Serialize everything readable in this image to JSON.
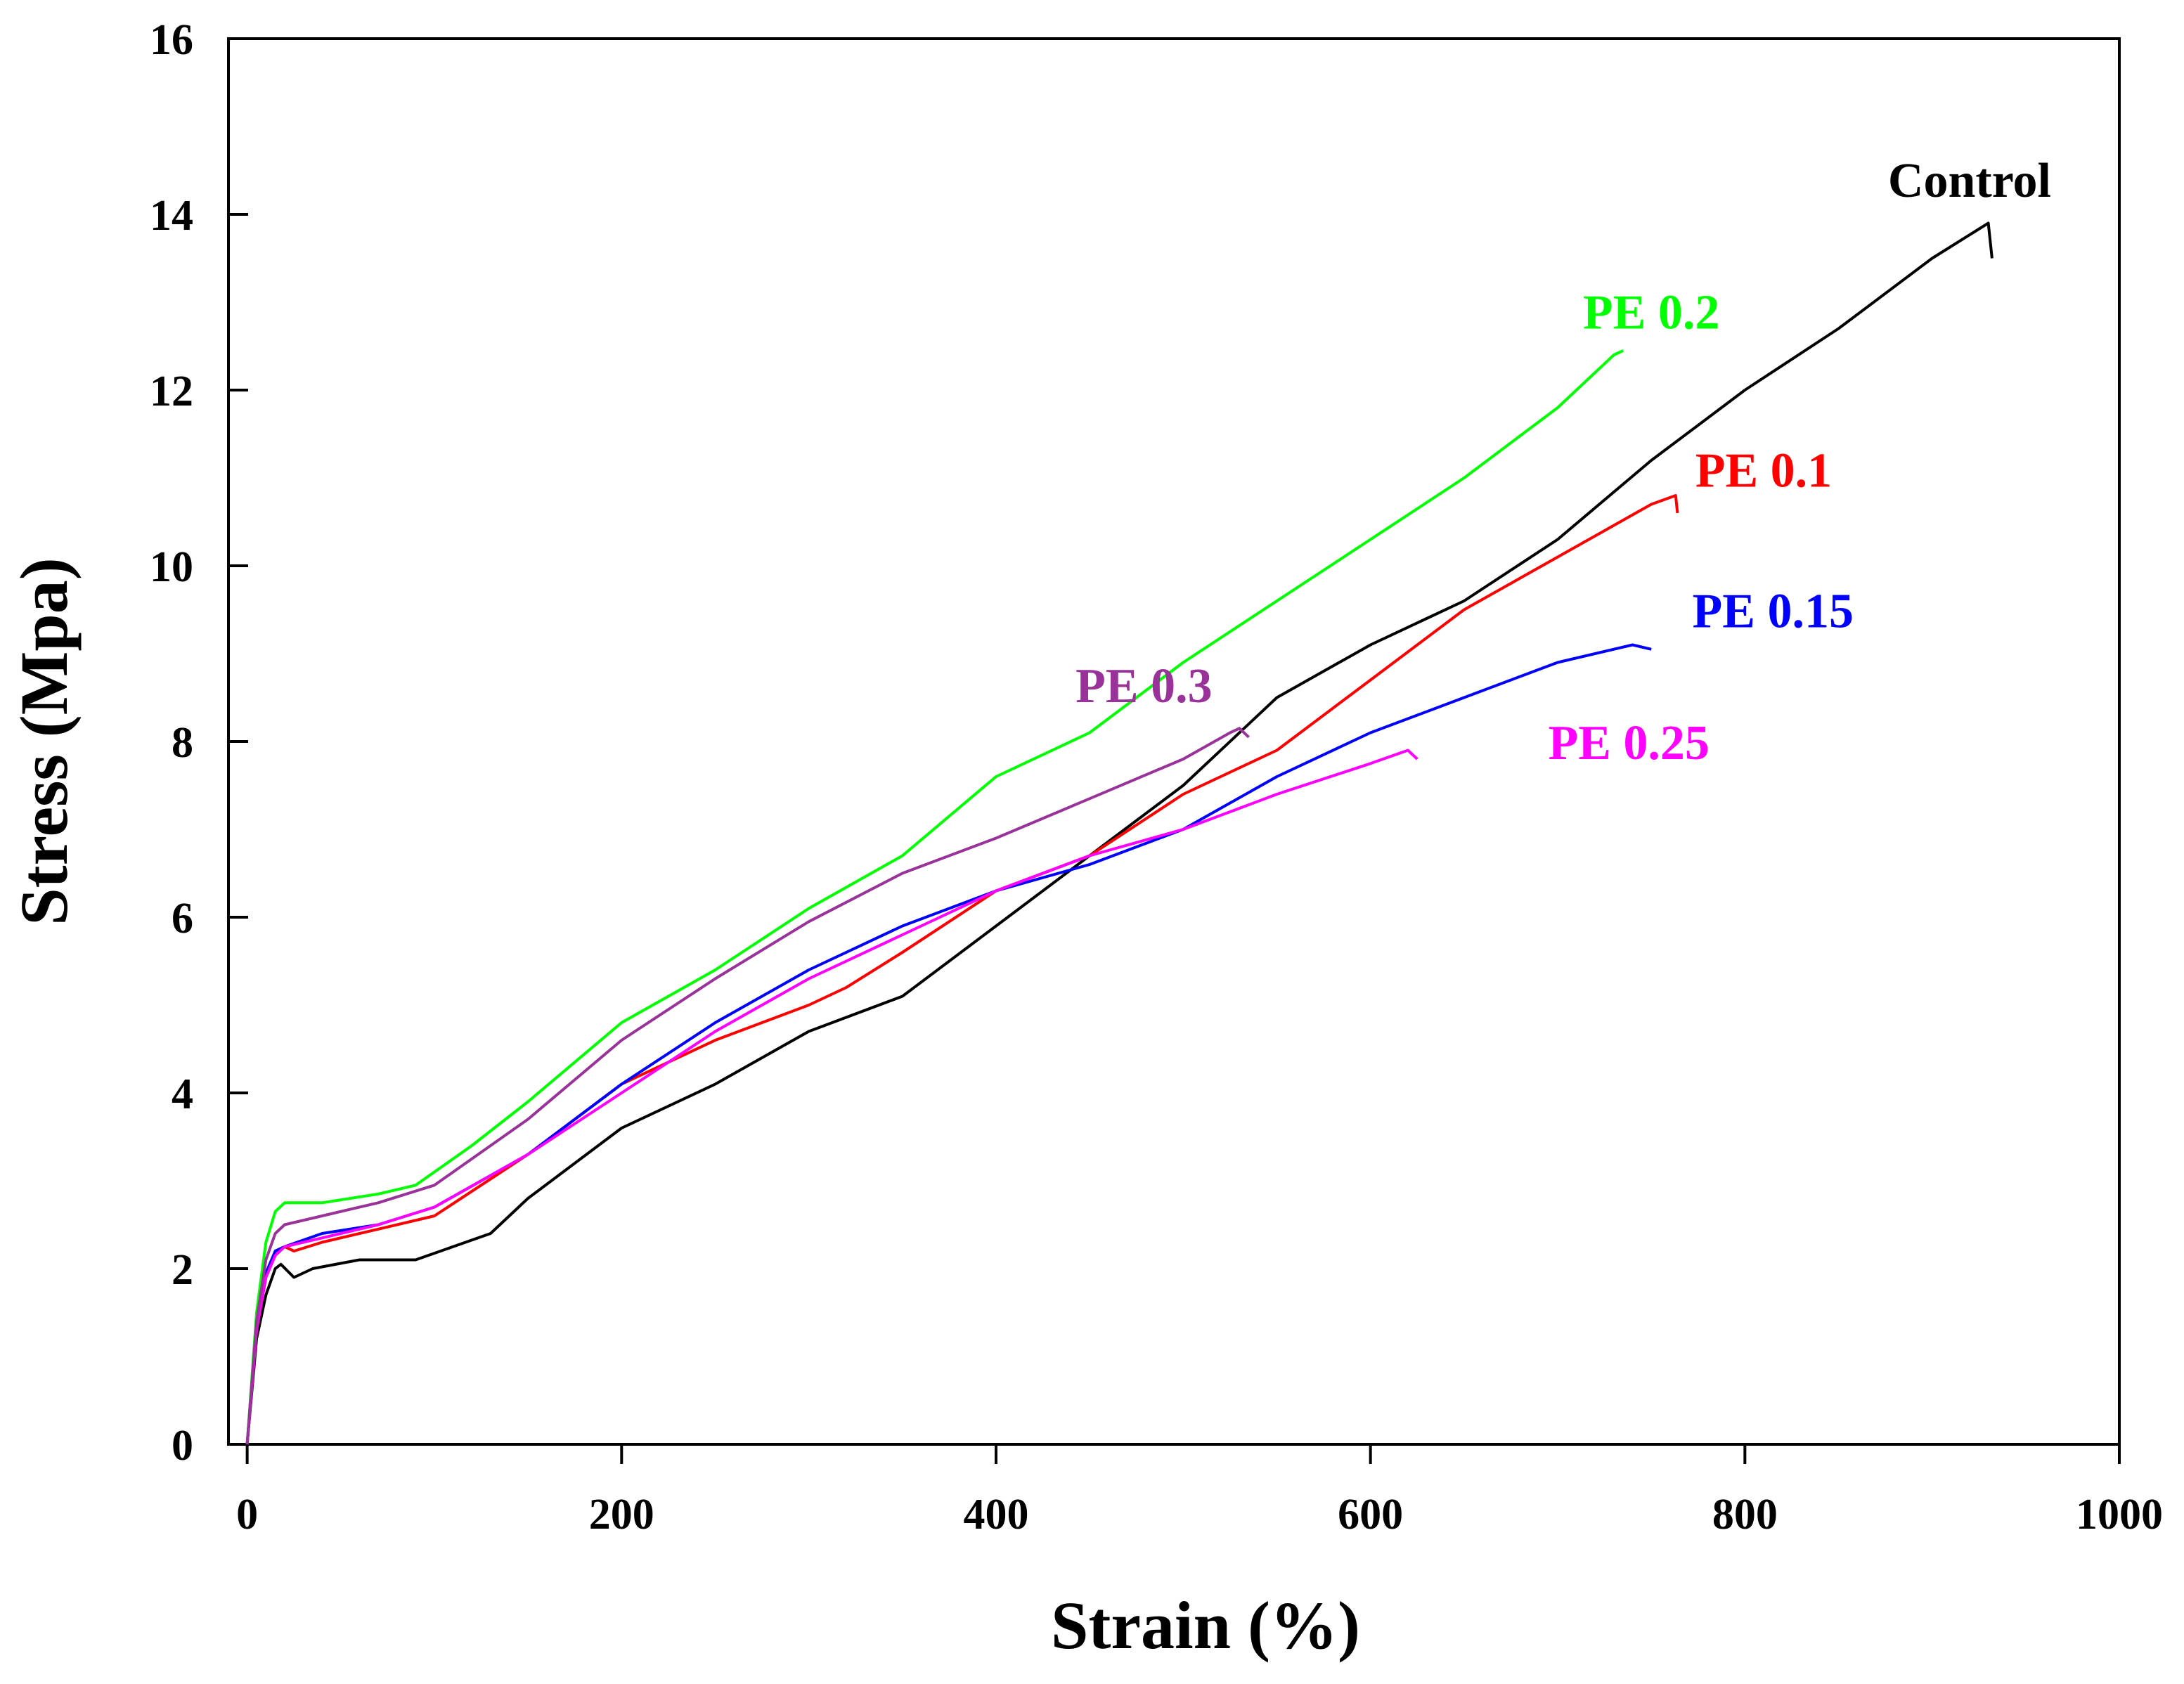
{
  "chart_data": {
    "type": "line",
    "title": "",
    "xlabel": "Strain (%)",
    "ylabel": "Stress (Mpa)",
    "xlim": [
      -10,
      1000
    ],
    "ylim": [
      0,
      16
    ],
    "xticks": [
      0,
      200,
      400,
      600,
      800,
      1000
    ],
    "yticks": [
      0,
      2,
      4,
      6,
      8,
      10,
      12,
      14,
      16
    ],
    "grid": false,
    "legend": "inline labels at line ends",
    "series": [
      {
        "name": "Control",
        "color": "#000000",
        "points": [
          [
            0,
            0
          ],
          [
            5,
            1.2
          ],
          [
            10,
            1.7
          ],
          [
            15,
            2.0
          ],
          [
            18,
            2.05
          ],
          [
            25,
            1.9
          ],
          [
            35,
            2.0
          ],
          [
            60,
            2.1
          ],
          [
            90,
            2.1
          ],
          [
            110,
            2.25
          ],
          [
            130,
            2.4
          ],
          [
            150,
            2.8
          ],
          [
            200,
            3.6
          ],
          [
            250,
            4.1
          ],
          [
            300,
            4.7
          ],
          [
            350,
            5.1
          ],
          [
            400,
            5.9
          ],
          [
            450,
            6.7
          ],
          [
            500,
            7.5
          ],
          [
            550,
            8.5
          ],
          [
            600,
            9.1
          ],
          [
            650,
            9.6
          ],
          [
            700,
            10.3
          ],
          [
            750,
            11.2
          ],
          [
            800,
            12.0
          ],
          [
            850,
            12.7
          ],
          [
            900,
            13.5
          ],
          [
            930,
            13.9
          ],
          [
            932,
            13.5
          ]
        ]
      },
      {
        "name": "PE 0.1",
        "color": "#ff0000",
        "points": [
          [
            0,
            0
          ],
          [
            5,
            1.3
          ],
          [
            10,
            1.9
          ],
          [
            15,
            2.2
          ],
          [
            20,
            2.25
          ],
          [
            25,
            2.2
          ],
          [
            40,
            2.3
          ],
          [
            70,
            2.45
          ],
          [
            100,
            2.6
          ],
          [
            150,
            3.3
          ],
          [
            200,
            4.1
          ],
          [
            250,
            4.6
          ],
          [
            300,
            5.0
          ],
          [
            320,
            5.2
          ],
          [
            350,
            5.6
          ],
          [
            400,
            6.3
          ],
          [
            450,
            6.7
          ],
          [
            500,
            7.4
          ],
          [
            550,
            7.9
          ],
          [
            600,
            8.7
          ],
          [
            650,
            9.5
          ],
          [
            700,
            10.1
          ],
          [
            750,
            10.7
          ],
          [
            763,
            10.8
          ],
          [
            764,
            10.6
          ]
        ]
      },
      {
        "name": "PE 0.15",
        "color": "#0000ff",
        "points": [
          [
            0,
            0
          ],
          [
            5,
            1.4
          ],
          [
            10,
            1.95
          ],
          [
            15,
            2.2
          ],
          [
            20,
            2.25
          ],
          [
            40,
            2.4
          ],
          [
            70,
            2.5
          ],
          [
            100,
            2.7
          ],
          [
            150,
            3.3
          ],
          [
            200,
            4.1
          ],
          [
            250,
            4.8
          ],
          [
            300,
            5.4
          ],
          [
            350,
            5.9
          ],
          [
            400,
            6.3
          ],
          [
            450,
            6.6
          ],
          [
            500,
            7.0
          ],
          [
            550,
            7.6
          ],
          [
            600,
            8.1
          ],
          [
            650,
            8.5
          ],
          [
            700,
            8.9
          ],
          [
            740,
            9.1
          ],
          [
            750,
            9.05
          ]
        ]
      },
      {
        "name": "PE 0.2",
        "color": "#00ff00",
        "points": [
          [
            0,
            0
          ],
          [
            5,
            1.5
          ],
          [
            10,
            2.3
          ],
          [
            15,
            2.65
          ],
          [
            20,
            2.75
          ],
          [
            40,
            2.75
          ],
          [
            70,
            2.85
          ],
          [
            90,
            2.95
          ],
          [
            120,
            3.4
          ],
          [
            150,
            3.9
          ],
          [
            200,
            4.8
          ],
          [
            250,
            5.4
          ],
          [
            300,
            6.1
          ],
          [
            350,
            6.7
          ],
          [
            400,
            7.6
          ],
          [
            450,
            8.1
          ],
          [
            500,
            8.9
          ],
          [
            550,
            9.6
          ],
          [
            600,
            10.3
          ],
          [
            650,
            11.0
          ],
          [
            700,
            11.8
          ],
          [
            730,
            12.4
          ],
          [
            735,
            12.45
          ]
        ]
      },
      {
        "name": "PE 0.25",
        "color": "#ff00ff",
        "points": [
          [
            0,
            0
          ],
          [
            5,
            1.3
          ],
          [
            10,
            1.9
          ],
          [
            15,
            2.15
          ],
          [
            20,
            2.25
          ],
          [
            40,
            2.35
          ],
          [
            70,
            2.5
          ],
          [
            100,
            2.7
          ],
          [
            150,
            3.3
          ],
          [
            200,
            4.0
          ],
          [
            250,
            4.7
          ],
          [
            300,
            5.3
          ],
          [
            350,
            5.8
          ],
          [
            400,
            6.3
          ],
          [
            450,
            6.7
          ],
          [
            500,
            7.0
          ],
          [
            550,
            7.4
          ],
          [
            600,
            7.75
          ],
          [
            620,
            7.9
          ],
          [
            625,
            7.8
          ]
        ]
      },
      {
        "name": "PE 0.3",
        "color": "#993399",
        "points": [
          [
            0,
            0
          ],
          [
            5,
            1.4
          ],
          [
            10,
            2.1
          ],
          [
            15,
            2.4
          ],
          [
            20,
            2.5
          ],
          [
            40,
            2.6
          ],
          [
            70,
            2.75
          ],
          [
            100,
            2.95
          ],
          [
            150,
            3.7
          ],
          [
            200,
            4.6
          ],
          [
            250,
            5.3
          ],
          [
            300,
            5.95
          ],
          [
            350,
            6.5
          ],
          [
            400,
            6.9
          ],
          [
            450,
            7.35
          ],
          [
            500,
            7.8
          ],
          [
            525,
            8.1
          ],
          [
            530,
            8.15
          ],
          [
            535,
            8.05
          ]
        ]
      }
    ],
    "annotations": [
      {
        "text": "Control",
        "x": 920,
        "y": 14.2,
        "color": "#000000"
      },
      {
        "text": "PE 0.2",
        "x": 750,
        "y": 12.7,
        "color": "#00ff00"
      },
      {
        "text": "PE 0.1",
        "x": 810,
        "y": 10.9,
        "color": "#ff0000"
      },
      {
        "text": "PE 0.15",
        "x": 815,
        "y": 9.3,
        "color": "#0000ff"
      },
      {
        "text": "PE 0.3",
        "x": 479,
        "y": 8.45,
        "color": "#993399"
      },
      {
        "text": "PE 0.25",
        "x": 738,
        "y": 7.8,
        "color": "#ff00ff"
      }
    ]
  }
}
